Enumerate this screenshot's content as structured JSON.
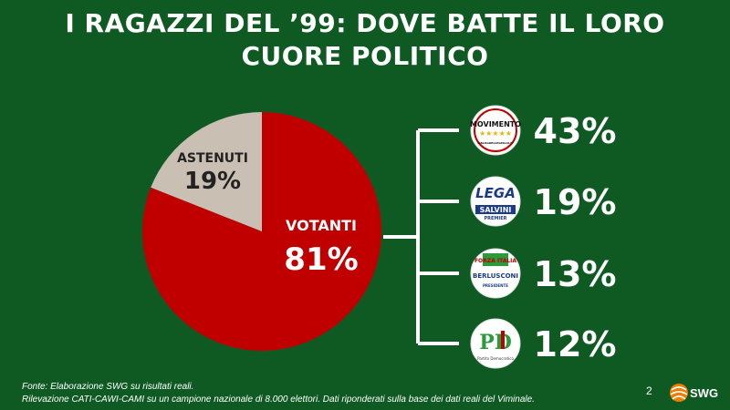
{
  "title": {
    "line1": "I RAGAZZI DEL ’99: DOVE BATTE IL LORO",
    "line2": "CUORE POLITICO"
  },
  "chart_data": [
    {
      "type": "pie",
      "slices": [
        {
          "label": "VOTANTI",
          "value": 81,
          "value_label": "81%",
          "color": "#c00000"
        },
        {
          "label": "ASTENUTI",
          "value": 19,
          "value_label": "19%",
          "color": "#c9bfb3"
        }
      ]
    },
    {
      "type": "table",
      "rows": [
        {
          "party_logo_text": [
            "MOVIMENTO",
            "★★★★★",
            "ILBLOGDELLEGRILLO.IT"
          ],
          "logo_icon": "m5s-logo-icon",
          "value": 43,
          "value_label": "43%"
        },
        {
          "party_logo_text": [
            "LEGA",
            "SALVINI",
            "PREMIER"
          ],
          "logo_icon": "lega-logo-icon",
          "value": 19,
          "value_label": "19%"
        },
        {
          "party_logo_text": [
            "FORZA ITALIA",
            "BERLUSCONI",
            "PRESIDENTE"
          ],
          "logo_icon": "forza-italia-logo-icon",
          "value": 13,
          "value_label": "13%"
        },
        {
          "party_logo_text": [
            "PD",
            "Partito Democratico"
          ],
          "logo_icon": "pd-logo-icon",
          "value": 12,
          "value_label": "12%"
        }
      ]
    }
  ],
  "footer": {
    "source": "Fonte: Elaborazione SWG su risultati reali.",
    "note": "Rilevazione CATI-CAWI-CAMI su un campione nazionale di 8.000 elettori. Dati riponderati sulla base dei dati reali del Viminale."
  },
  "page_number": "2",
  "brand": {
    "name": "SWG",
    "icon": "swg-logo-icon"
  },
  "colors": {
    "background": "#0e5a22",
    "votanti": "#c00000",
    "astenuti": "#c9bfb3",
    "text_light": "#ffffff",
    "text_dark": "#222222"
  }
}
